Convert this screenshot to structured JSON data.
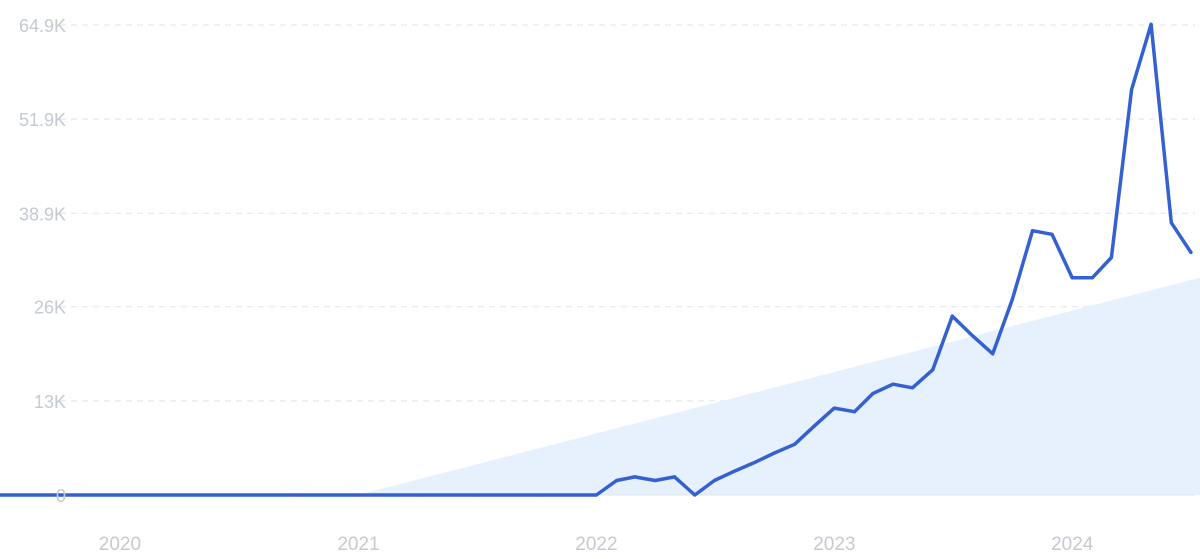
{
  "chart_data": {
    "type": "line",
    "title": "",
    "xlabel": "",
    "ylabel": "",
    "grid": true,
    "ylim": [
      0,
      64900
    ],
    "y_ticks": [
      {
        "value": 0,
        "label": "0"
      },
      {
        "value": 13000,
        "label": "13K"
      },
      {
        "value": 26000,
        "label": "26K"
      },
      {
        "value": 38900,
        "label": "38.9K"
      },
      {
        "value": 51900,
        "label": "51.9K"
      },
      {
        "value": 64900,
        "label": "64.9K"
      }
    ],
    "xlim": [
      "2019-07-01",
      "2024-07-15"
    ],
    "x_ticks": [
      {
        "value": "2020-01-01",
        "label": "2020"
      },
      {
        "value": "2021-01-01",
        "label": "2021"
      },
      {
        "value": "2022-01-01",
        "label": "2022"
      },
      {
        "value": "2023-01-01",
        "label": "2023"
      },
      {
        "value": "2024-01-01",
        "label": "2024"
      }
    ],
    "series": [
      {
        "color": "#3461d1",
        "x": [
          "2019-07-01",
          "2019-10-01",
          "2020-01-01",
          "2020-04-01",
          "2020-07-01",
          "2020-10-01",
          "2021-01-01",
          "2021-04-01",
          "2021-07-01",
          "2021-10-01",
          "2022-01-01",
          "2022-02-01",
          "2022-03-01",
          "2022-04-01",
          "2022-05-01",
          "2022-06-01",
          "2022-07-01",
          "2022-08-01",
          "2022-09-01",
          "2022-10-01",
          "2022-11-01",
          "2022-12-01",
          "2023-01-01",
          "2023-02-01",
          "2023-03-01",
          "2023-04-01",
          "2023-05-01",
          "2023-06-01",
          "2023-07-01",
          "2023-08-01",
          "2023-09-01",
          "2023-10-01",
          "2023-11-01",
          "2023-12-01",
          "2024-01-01",
          "2024-02-01",
          "2024-03-01",
          "2024-04-01",
          "2024-05-01",
          "2024-06-01",
          "2024-07-01"
        ],
        "values": [
          0,
          0,
          0,
          0,
          0,
          0,
          0,
          0,
          0,
          0,
          0,
          2000,
          2500,
          2000,
          2500,
          0,
          2000,
          3300,
          4500,
          5800,
          7000,
          9500,
          12000,
          11500,
          14000,
          15300,
          14800,
          17300,
          24700,
          22000,
          19500,
          27000,
          36500,
          36000,
          30000,
          30000,
          32800,
          56000,
          65000,
          37600,
          33500
        ]
      },
      {
        "type": "area",
        "role": "trend",
        "color": "#e7f0fd",
        "x": [
          "2020-12-31",
          "2024-07-15"
        ],
        "values": [
          0,
          30000
        ]
      }
    ]
  }
}
